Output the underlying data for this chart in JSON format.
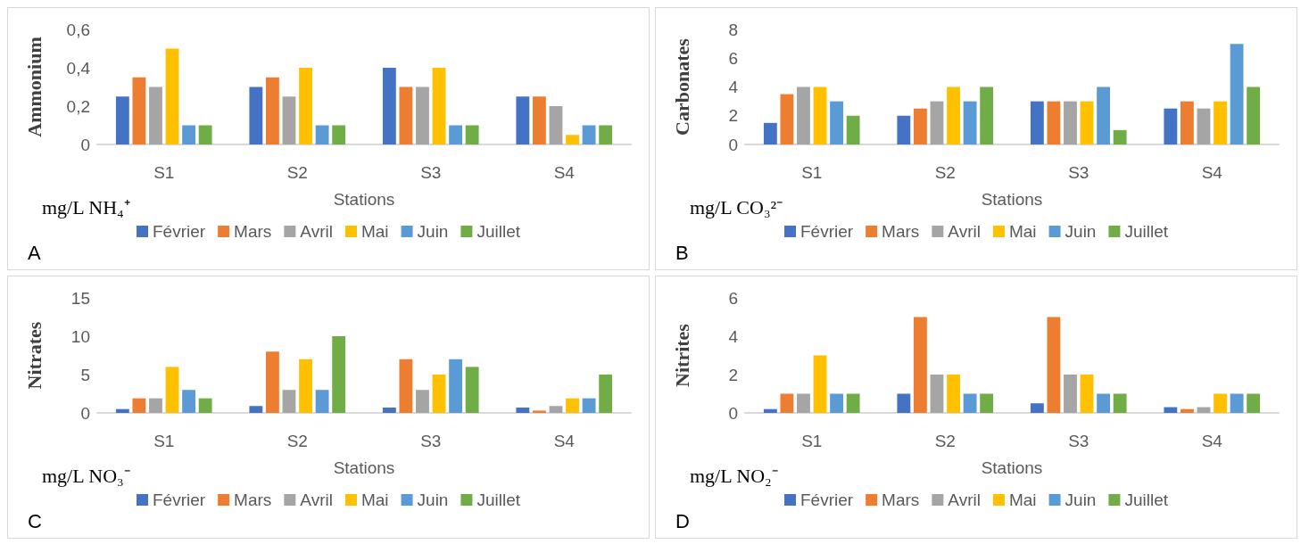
{
  "chart_data": [
    {
      "type": "bar",
      "categories": [
        "S1",
        "S2",
        "S3",
        "S4"
      ],
      "xlabel": "Stations",
      "ylabel": "Ammonium",
      "ylim": [
        0,
        0.6
      ],
      "yticks": [
        0,
        {
          "value": 0.2,
          "label": "0,2"
        },
        {
          "value": 0.4,
          "label": "0,4"
        },
        {
          "value": 0.6,
          "label": "0,6"
        }
      ],
      "grid": false,
      "legend": "bottom",
      "annotations": [
        "mg/L NH₄⁺",
        "A"
      ],
      "series": [
        {
          "name": "Février",
          "color": "#4472c4",
          "values": [
            0.25,
            0.3,
            0.4,
            0.25
          ]
        },
        {
          "name": "Mars",
          "color": "#ed7d31",
          "values": [
            0.35,
            0.35,
            0.3,
            0.25
          ]
        },
        {
          "name": "Avril",
          "color": "#a5a5a5",
          "values": [
            0.3,
            0.25,
            0.3,
            0.2
          ]
        },
        {
          "name": "Mai",
          "color": "#ffc000",
          "values": [
            0.5,
            0.4,
            0.4,
            0.05
          ]
        },
        {
          "name": "Juin",
          "color": "#5b9bd5",
          "values": [
            0.1,
            0.1,
            0.1,
            0.1
          ]
        },
        {
          "name": "Juillet",
          "color": "#70ad47",
          "values": [
            0.1,
            0.1,
            0.1,
            0.1
          ]
        }
      ]
    },
    {
      "type": "bar",
      "categories": [
        "S1",
        "S2",
        "S3",
        "S4"
      ],
      "xlabel": "Stations",
      "ylabel": "Carbonates",
      "ylim": [
        0,
        8
      ],
      "yticks": [
        0,
        2,
        4,
        6,
        8
      ],
      "grid": false,
      "legend": "bottom",
      "annotations": [
        "mg/L CO₃²⁻",
        "B"
      ],
      "series": [
        {
          "name": "Février",
          "color": "#4472c4",
          "values": [
            1.5,
            2,
            3,
            2.5
          ]
        },
        {
          "name": "Mars",
          "color": "#ed7d31",
          "values": [
            3.5,
            2.5,
            3,
            3
          ]
        },
        {
          "name": "Avril",
          "color": "#a5a5a5",
          "values": [
            4,
            3,
            3,
            2.5
          ]
        },
        {
          "name": "Mai",
          "color": "#ffc000",
          "values": [
            4,
            4,
            3,
            3
          ]
        },
        {
          "name": "Juin",
          "color": "#5b9bd5",
          "values": [
            3,
            3,
            4,
            7
          ]
        },
        {
          "name": "Juillet",
          "color": "#70ad47",
          "values": [
            2,
            4,
            1,
            4
          ]
        }
      ]
    },
    {
      "type": "bar",
      "categories": [
        "S1",
        "S2",
        "S3",
        "S4"
      ],
      "xlabel": "Stations",
      "ylabel": "Nitrates",
      "ylim": [
        0,
        15
      ],
      "yticks": [
        0,
        5,
        10,
        15
      ],
      "grid": false,
      "legend": "bottom",
      "annotations": [
        "mg/L NO₃⁻",
        "C"
      ],
      "series": [
        {
          "name": "Février",
          "color": "#4472c4",
          "values": [
            0.5,
            0.9,
            0.7,
            0.7
          ]
        },
        {
          "name": "Mars",
          "color": "#ed7d31",
          "values": [
            1.9,
            8,
            7,
            0.3
          ]
        },
        {
          "name": "Avril",
          "color": "#a5a5a5",
          "values": [
            1.9,
            3,
            3,
            0.9
          ]
        },
        {
          "name": "Mai",
          "color": "#ffc000",
          "values": [
            6,
            7,
            5,
            1.9
          ]
        },
        {
          "name": "Juin",
          "color": "#5b9bd5",
          "values": [
            3,
            3,
            7,
            1.9
          ]
        },
        {
          "name": "Juillet",
          "color": "#70ad47",
          "values": [
            1.9,
            10,
            6,
            5
          ]
        }
      ]
    },
    {
      "type": "bar",
      "categories": [
        "S1",
        "S2",
        "S3",
        "S4"
      ],
      "xlabel": "Stations",
      "ylabel": "Nitrites",
      "ylim": [
        0,
        6
      ],
      "yticks": [
        0,
        2,
        4,
        6
      ],
      "grid": false,
      "legend": "bottom",
      "annotations": [
        "mg/L NO₂⁻",
        "D"
      ],
      "series": [
        {
          "name": "Février",
          "color": "#4472c4",
          "values": [
            0.2,
            1,
            0.5,
            0.3
          ]
        },
        {
          "name": "Mars",
          "color": "#ed7d31",
          "values": [
            1,
            5,
            5,
            0.2
          ]
        },
        {
          "name": "Avril",
          "color": "#a5a5a5",
          "values": [
            1,
            2,
            2,
            0.3
          ]
        },
        {
          "name": "Mai",
          "color": "#ffc000",
          "values": [
            3,
            2,
            2,
            1
          ]
        },
        {
          "name": "Juin",
          "color": "#5b9bd5",
          "values": [
            1,
            1,
            1,
            1
          ]
        },
        {
          "name": "Juillet",
          "color": "#70ad47",
          "values": [
            1,
            1,
            1,
            1
          ]
        }
      ]
    }
  ]
}
